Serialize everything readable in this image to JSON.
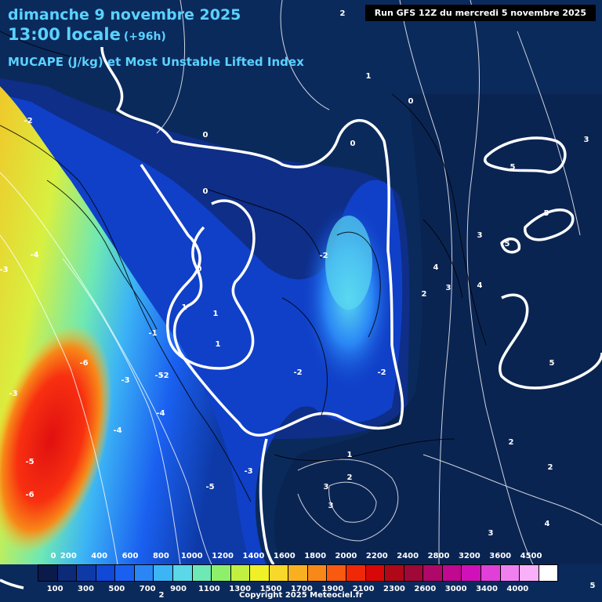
{
  "header": {
    "date_line": "dimanche 9 novembre 2025",
    "time_line": "13:00 locale",
    "lead_time": "(+96h)",
    "parameter": "MUCAPE (J/kg) et Most Unstable Lifted Index"
  },
  "run_info": "Run GFS 12Z du mercredi 5 novembre 2025",
  "colorbar": {
    "top_ticks": [
      "0",
      "200",
      "400",
      "600",
      "800",
      "1000",
      "1200",
      "1400",
      "1600",
      "1800",
      "2000",
      "2200",
      "2400",
      "2800",
      "3200",
      "3600",
      "4500"
    ],
    "bottom_ticks": [
      "100",
      "300",
      "500",
      "700",
      "900",
      "1100",
      "1300",
      "1500",
      "1700",
      "1900",
      "2100",
      "2300",
      "2600",
      "3000",
      "3400",
      "4000"
    ],
    "colors": [
      "#0a1a4a",
      "#0c2a78",
      "#0e3aa8",
      "#1048d8",
      "#1a60f0",
      "#2a86f5",
      "#3cb4f5",
      "#5ad8e8",
      "#6ee8b4",
      "#8ef06a",
      "#c2f040",
      "#f0f028",
      "#f8d828",
      "#f8b020",
      "#f88818",
      "#f85a10",
      "#f02808",
      "#d80808",
      "#b00818",
      "#a00838",
      "#b00868",
      "#c00890",
      "#d010b8",
      "#e040d8",
      "#f080f0",
      "#f8b0f8",
      "#ffffff"
    ]
  },
  "contour_labels": [
    "2",
    "1",
    "0",
    "0",
    "0",
    "0",
    "0",
    "-2",
    "-2",
    "-4",
    "-3",
    "-6",
    "-3",
    "-4",
    "-3",
    "-5",
    "-6",
    "-5",
    "-4",
    "-5",
    "-3",
    "-1",
    "-2",
    "-2",
    "-2",
    "1",
    "1",
    "1",
    "2",
    "3",
    "3",
    "4",
    "4",
    "5",
    "5",
    "5",
    "5",
    "3",
    "2",
    "2",
    "1",
    "2",
    "3",
    "3",
    "4",
    "3",
    "5",
    "2"
  ],
  "copyright": "Copyright 2025 Meteociel.fr"
}
